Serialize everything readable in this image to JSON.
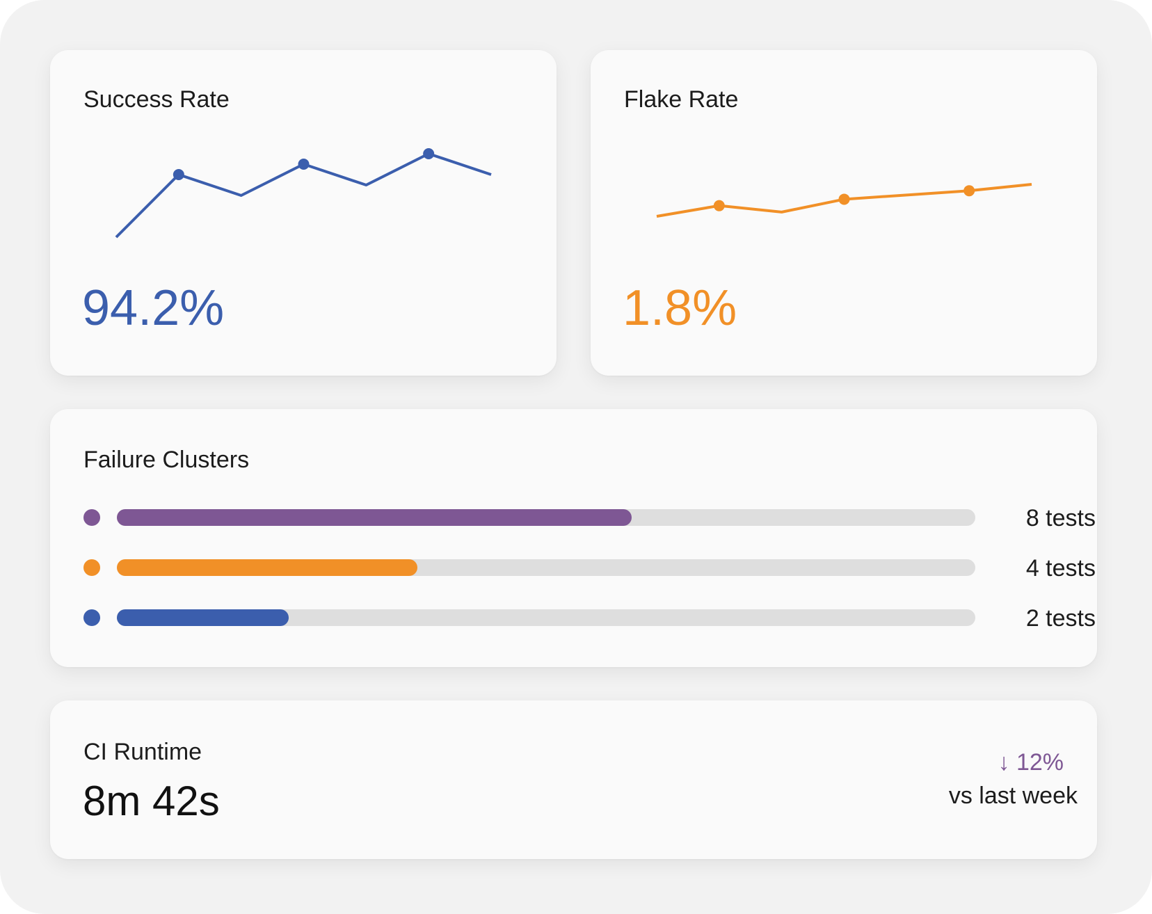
{
  "colors": {
    "blue": "#3b5ead",
    "orange": "#f19027",
    "purple": "#7e5794",
    "track": "#dedede"
  },
  "success_rate": {
    "title": "Success Rate",
    "value": "94.2%",
    "trend": [
      0,
      30,
      20,
      35,
      25,
      40,
      30
    ],
    "marked_points": [
      1,
      3,
      5
    ]
  },
  "flake_rate": {
    "title": "Flake Rate",
    "value": "1.8%",
    "trend": [
      0,
      5,
      2,
      8,
      10,
      12,
      15
    ],
    "marked_points": [
      1,
      3,
      5
    ]
  },
  "failure_clusters": {
    "title": "Failure Clusters",
    "items": [
      {
        "label": "8 tests",
        "count": 8,
        "fraction": 0.6,
        "color": "#7e5794"
      },
      {
        "label": "4 tests",
        "count": 4,
        "fraction": 0.35,
        "color": "#f19027"
      },
      {
        "label": "2 tests",
        "count": 2,
        "fraction": 0.2,
        "color": "#3b5ead"
      }
    ]
  },
  "ci_runtime": {
    "title": "CI Runtime",
    "value": "8m 42s",
    "delta": "↓ 12%",
    "comparison": "vs last week"
  }
}
